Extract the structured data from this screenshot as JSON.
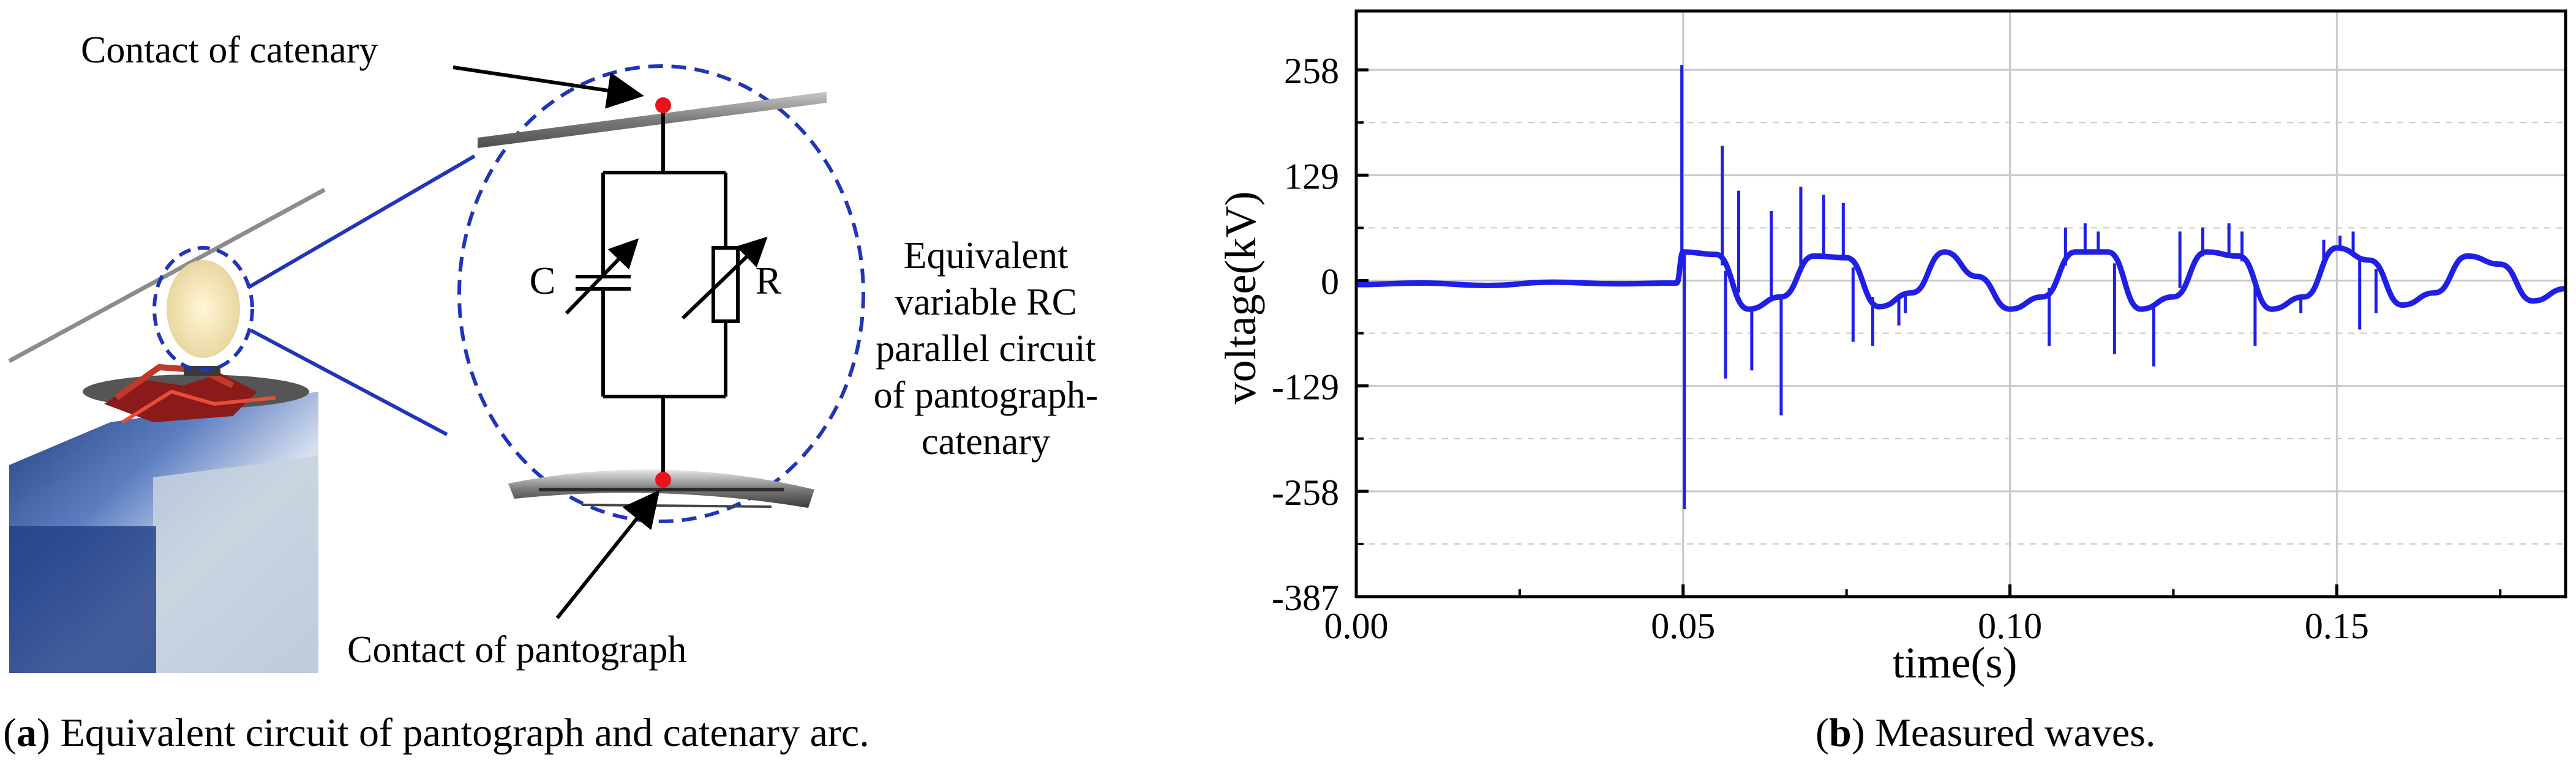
{
  "panel_a": {
    "label_catenary_contact": "Contact of catenary",
    "label_pantograph_contact": "Contact of pantograph",
    "label_c": "C",
    "label_r": "R",
    "equivalent_lines": [
      "Equivalent",
      "variable RC",
      "parallel circuit",
      "of pantograph-",
      "catenary"
    ],
    "caption_letter": "a",
    "caption_text": "Equivalent circuit of pantograph and catenary arc."
  },
  "panel_b": {
    "caption_letter": "b",
    "caption_text": "Measured waves."
  },
  "colors": {
    "wave": "#1f1fe6",
    "dashed_outline": "#2035b8",
    "contact_dot": "#e8141c",
    "grid": "#c8c8c8"
  },
  "chart_data": {
    "type": "line",
    "title": "",
    "xlabel": "time(s)",
    "ylabel": "voltage(kV)",
    "xlim": [
      0,
      0.185
    ],
    "ylim": [
      -387,
      330
    ],
    "xticks": [
      0.0,
      0.05,
      0.1,
      0.15
    ],
    "xtick_labels": [
      "0.00",
      "0.05",
      "0.10",
      "0.15"
    ],
    "yticks": [
      258,
      129,
      0,
      -129,
      -258,
      -387
    ],
    "ytick_labels": [
      "258",
      "129",
      "0",
      "-129",
      "-258",
      "-387"
    ],
    "grid": true,
    "series": [
      {
        "name": "",
        "x": [
          0,
          0.01,
          0.02,
          0.03,
          0.04,
          0.049,
          0.05,
          0.055,
          0.06,
          0.065,
          0.07,
          0.075,
          0.08,
          0.085,
          0.09,
          0.095,
          0.1,
          0.105,
          0.11,
          0.115,
          0.12,
          0.125,
          0.13,
          0.135,
          0.14,
          0.145,
          0.15,
          0.155,
          0.16,
          0.165,
          0.17,
          0.175,
          0.18,
          0.185
        ],
        "y": [
          -5,
          -3,
          -6,
          -2,
          -4,
          -3,
          35,
          32,
          -35,
          -20,
          30,
          28,
          -32,
          -15,
          35,
          5,
          -35,
          -20,
          35,
          35,
          -35,
          -20,
          35,
          30,
          -35,
          -20,
          40,
          25,
          -30,
          -15,
          30,
          20,
          -25,
          -10
        ]
      }
    ],
    "spikes": [
      {
        "x": 0.0498,
        "y": 264
      },
      {
        "x": 0.0502,
        "y": -280
      },
      {
        "x": 0.056,
        "y": 165
      },
      {
        "x": 0.0565,
        "y": -120
      },
      {
        "x": 0.0585,
        "y": 110
      },
      {
        "x": 0.0605,
        "y": -110
      },
      {
        "x": 0.0635,
        "y": 85
      },
      {
        "x": 0.065,
        "y": -165
      },
      {
        "x": 0.068,
        "y": 115
      },
      {
        "x": 0.0715,
        "y": 105
      },
      {
        "x": 0.0745,
        "y": 95
      },
      {
        "x": 0.076,
        "y": -75
      },
      {
        "x": 0.079,
        "y": -80
      },
      {
        "x": 0.083,
        "y": -55
      },
      {
        "x": 0.084,
        "y": -40
      },
      {
        "x": 0.106,
        "y": -80
      },
      {
        "x": 0.1085,
        "y": 65
      },
      {
        "x": 0.1115,
        "y": 70
      },
      {
        "x": 0.1135,
        "y": 60
      },
      {
        "x": 0.116,
        "y": -90
      },
      {
        "x": 0.122,
        "y": -105
      },
      {
        "x": 0.126,
        "y": 60
      },
      {
        "x": 0.1295,
        "y": 65
      },
      {
        "x": 0.1335,
        "y": 70
      },
      {
        "x": 0.1355,
        "y": 60
      },
      {
        "x": 0.1375,
        "y": -80
      },
      {
        "x": 0.1445,
        "y": -40
      },
      {
        "x": 0.148,
        "y": 50
      },
      {
        "x": 0.1505,
        "y": 55
      },
      {
        "x": 0.1525,
        "y": 60
      },
      {
        "x": 0.1535,
        "y": -60
      },
      {
        "x": 0.156,
        "y": -40
      }
    ]
  }
}
